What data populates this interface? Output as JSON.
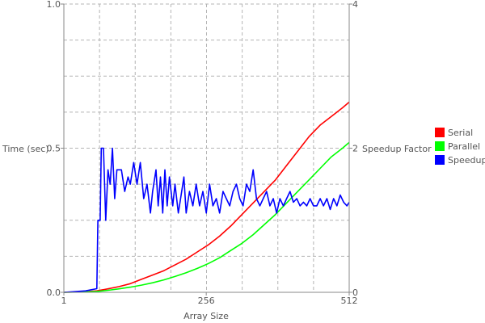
{
  "chart_data": {
    "type": "line",
    "xlabel": "Array Size",
    "ylabel": "Time (sec)",
    "y2label": "Speedup Factor",
    "xlim": [
      1,
      512
    ],
    "ylim": [
      0,
      1
    ],
    "y2lim": [
      0,
      4
    ],
    "x_ticks": [
      1,
      256,
      512
    ],
    "y_ticks": [
      "0.0",
      "0.5",
      "1.0"
    ],
    "y2_ticks": [
      "0",
      "2",
      "4"
    ],
    "grid": true,
    "legend_position": "right",
    "series": [
      {
        "name": "Serial",
        "axis": "left",
        "color": "#ff0000",
        "points": [
          [
            1,
            0
          ],
          [
            40,
            0.002
          ],
          [
            60,
            0.005
          ],
          [
            80,
            0.012
          ],
          [
            100,
            0.02
          ],
          [
            120,
            0.03
          ],
          [
            140,
            0.045
          ],
          [
            160,
            0.06
          ],
          [
            180,
            0.075
          ],
          [
            200,
            0.095
          ],
          [
            220,
            0.115
          ],
          [
            240,
            0.14
          ],
          [
            260,
            0.165
          ],
          [
            280,
            0.195
          ],
          [
            300,
            0.23
          ],
          [
            320,
            0.27
          ],
          [
            340,
            0.31
          ],
          [
            360,
            0.35
          ],
          [
            380,
            0.39
          ],
          [
            400,
            0.44
          ],
          [
            420,
            0.49
          ],
          [
            440,
            0.54
          ],
          [
            460,
            0.58
          ],
          [
            480,
            0.61
          ],
          [
            500,
            0.64
          ],
          [
            512,
            0.66
          ]
        ]
      },
      {
        "name": "Parallel",
        "axis": "left",
        "color": "#00ff00",
        "points": [
          [
            1,
            0
          ],
          [
            40,
            0.001
          ],
          [
            60,
            0.003
          ],
          [
            80,
            0.007
          ],
          [
            100,
            0.012
          ],
          [
            120,
            0.018
          ],
          [
            140,
            0.025
          ],
          [
            160,
            0.033
          ],
          [
            180,
            0.043
          ],
          [
            200,
            0.055
          ],
          [
            220,
            0.068
          ],
          [
            240,
            0.083
          ],
          [
            260,
            0.1
          ],
          [
            280,
            0.12
          ],
          [
            300,
            0.145
          ],
          [
            320,
            0.17
          ],
          [
            340,
            0.2
          ],
          [
            360,
            0.235
          ],
          [
            380,
            0.27
          ],
          [
            400,
            0.31
          ],
          [
            420,
            0.35
          ],
          [
            440,
            0.39
          ],
          [
            460,
            0.43
          ],
          [
            480,
            0.47
          ],
          [
            500,
            0.5
          ],
          [
            512,
            0.52
          ]
        ]
      },
      {
        "name": "Speedup",
        "axis": "right",
        "color": "#0000ff",
        "points": [
          [
            1,
            0
          ],
          [
            40,
            0.02
          ],
          [
            60,
            0.05
          ],
          [
            62,
            1.0
          ],
          [
            66,
            1.0
          ],
          [
            68,
            2.0
          ],
          [
            72,
            2.0
          ],
          [
            76,
            1.0
          ],
          [
            80,
            1.7
          ],
          [
            84,
            1.5
          ],
          [
            88,
            2.0
          ],
          [
            92,
            1.3
          ],
          [
            96,
            1.7
          ],
          [
            104,
            1.7
          ],
          [
            110,
            1.4
          ],
          [
            116,
            1.6
          ],
          [
            120,
            1.5
          ],
          [
            126,
            1.8
          ],
          [
            132,
            1.5
          ],
          [
            138,
            1.8
          ],
          [
            144,
            1.3
          ],
          [
            150,
            1.5
          ],
          [
            156,
            1.1
          ],
          [
            160,
            1.4
          ],
          [
            166,
            1.7
          ],
          [
            170,
            1.2
          ],
          [
            174,
            1.6
          ],
          [
            178,
            1.1
          ],
          [
            182,
            1.7
          ],
          [
            186,
            1.2
          ],
          [
            190,
            1.6
          ],
          [
            196,
            1.2
          ],
          [
            200,
            1.5
          ],
          [
            206,
            1.1
          ],
          [
            210,
            1.3
          ],
          [
            216,
            1.6
          ],
          [
            220,
            1.1
          ],
          [
            226,
            1.4
          ],
          [
            232,
            1.2
          ],
          [
            238,
            1.5
          ],
          [
            244,
            1.2
          ],
          [
            250,
            1.4
          ],
          [
            256,
            1.1
          ],
          [
            262,
            1.5
          ],
          [
            268,
            1.2
          ],
          [
            274,
            1.3
          ],
          [
            280,
            1.1
          ],
          [
            286,
            1.4
          ],
          [
            292,
            1.3
          ],
          [
            298,
            1.2
          ],
          [
            304,
            1.4
          ],
          [
            310,
            1.5
          ],
          [
            316,
            1.3
          ],
          [
            322,
            1.2
          ],
          [
            328,
            1.5
          ],
          [
            334,
            1.4
          ],
          [
            340,
            1.7
          ],
          [
            346,
            1.3
          ],
          [
            352,
            1.2
          ],
          [
            358,
            1.3
          ],
          [
            364,
            1.4
          ],
          [
            370,
            1.2
          ],
          [
            376,
            1.3
          ],
          [
            382,
            1.1
          ],
          [
            388,
            1.3
          ],
          [
            394,
            1.2
          ],
          [
            400,
            1.3
          ],
          [
            406,
            1.4
          ],
          [
            412,
            1.25
          ],
          [
            418,
            1.3
          ],
          [
            424,
            1.2
          ],
          [
            430,
            1.25
          ],
          [
            436,
            1.2
          ],
          [
            442,
            1.3
          ],
          [
            448,
            1.2
          ],
          [
            454,
            1.2
          ],
          [
            460,
            1.3
          ],
          [
            466,
            1.2
          ],
          [
            472,
            1.3
          ],
          [
            478,
            1.15
          ],
          [
            484,
            1.3
          ],
          [
            490,
            1.2
          ],
          [
            496,
            1.35
          ],
          [
            502,
            1.25
          ],
          [
            508,
            1.2
          ],
          [
            512,
            1.25
          ]
        ]
      }
    ]
  }
}
